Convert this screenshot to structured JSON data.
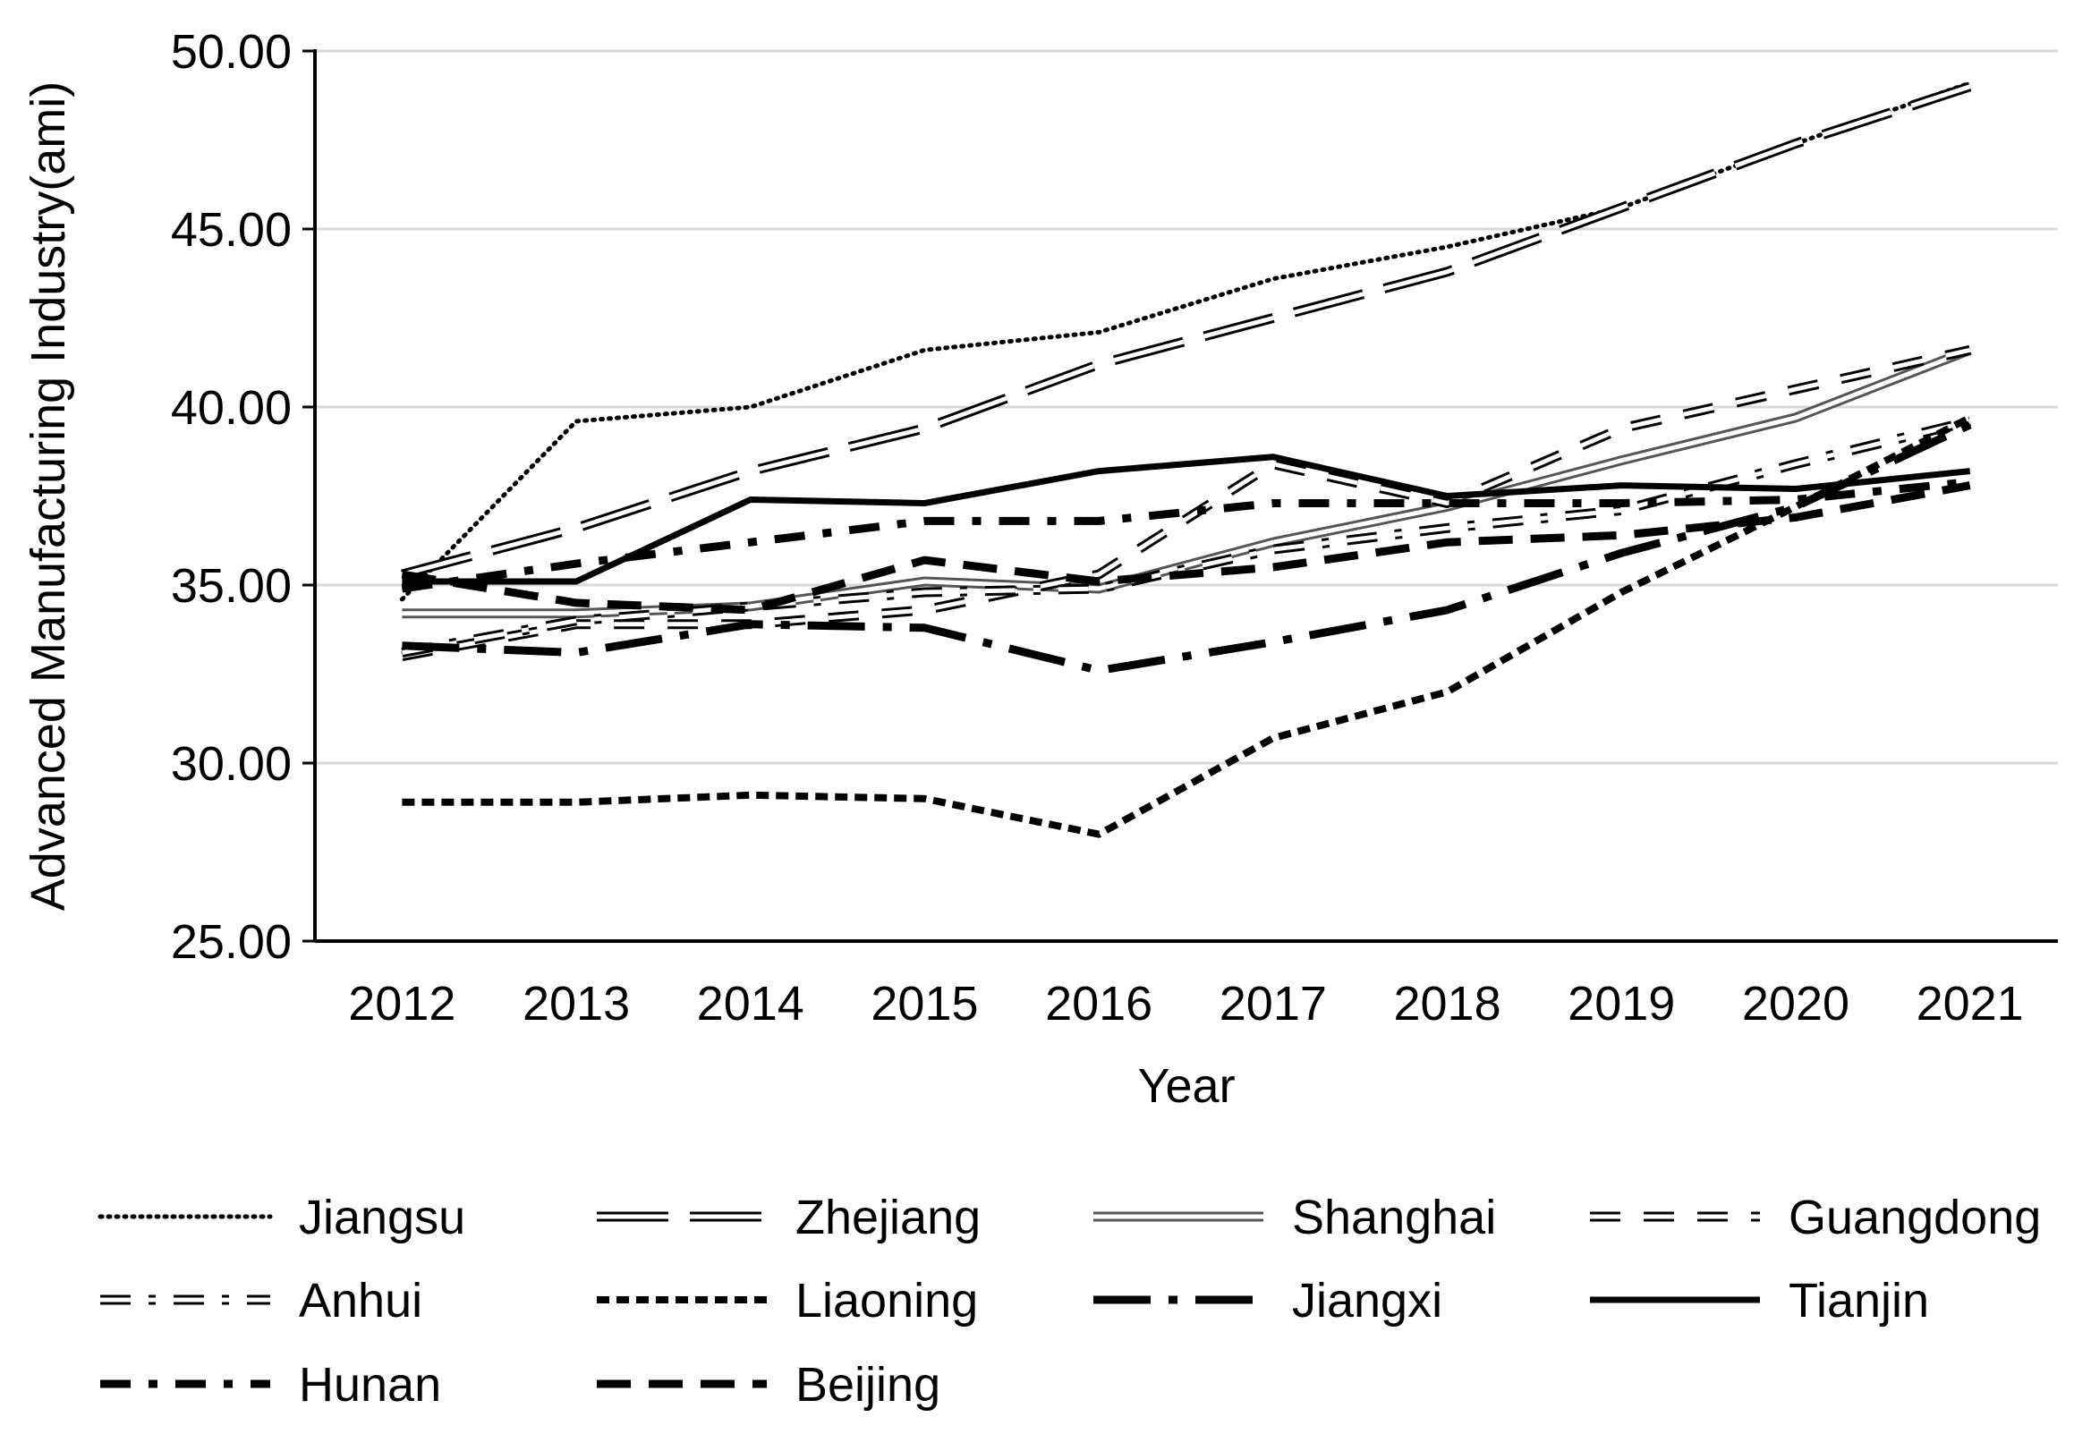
{
  "chart_data": {
    "type": "line",
    "title": "",
    "xlabel": "Year",
    "ylabel": "Advanced Manufacturing Industry(ami)",
    "ylim": [
      25,
      50
    ],
    "yticks": [
      "25.00",
      "30.00",
      "35.00",
      "40.00",
      "45.00",
      "50.00"
    ],
    "categories": [
      "2012",
      "2013",
      "2014",
      "2015",
      "2016",
      "2017",
      "2018",
      "2019",
      "2020",
      "2021"
    ],
    "grid": true,
    "legend_position": "bottom",
    "series": [
      {
        "name": "Jiangsu",
        "style": "dotted",
        "color": "#000000",
        "values": [
          34.6,
          39.6,
          40.0,
          41.6,
          42.1,
          43.6,
          44.5,
          45.6,
          47.4,
          49.1
        ]
      },
      {
        "name": "Zhejiang",
        "style": "double-long-dash",
        "color": "#000000",
        "values": [
          35.3,
          36.6,
          38.2,
          39.4,
          41.2,
          42.5,
          43.8,
          45.6,
          47.4,
          49.0
        ]
      },
      {
        "name": "Shanghai",
        "style": "double-solid",
        "color": "#555555",
        "values": [
          34.2,
          34.2,
          34.4,
          35.1,
          34.9,
          36.2,
          37.2,
          38.5,
          39.7,
          41.6
        ]
      },
      {
        "name": "Guangdong",
        "style": "double-dash",
        "color": "#000000",
        "values": [
          33.0,
          33.9,
          33.9,
          34.3,
          35.3,
          38.4,
          37.3,
          39.4,
          40.5,
          41.6
        ]
      },
      {
        "name": "Anhui",
        "style": "double-dash-dot",
        "color": "#000000",
        "values": [
          33.1,
          34.0,
          34.4,
          34.8,
          34.9,
          36.0,
          36.6,
          37.1,
          38.4,
          39.6
        ]
      },
      {
        "name": "Liaoning",
        "style": "short-dash",
        "color": "#000000",
        "values": [
          28.9,
          28.9,
          29.1,
          29.0,
          28.0,
          30.7,
          32.0,
          34.8,
          37.2,
          39.7
        ]
      },
      {
        "name": "Jiangxi",
        "style": "long-dash-dot",
        "color": "#000000",
        "values": [
          33.3,
          33.1,
          33.9,
          33.8,
          32.6,
          33.4,
          34.3,
          35.9,
          37.2,
          39.5
        ]
      },
      {
        "name": "Tianjin",
        "style": "solid",
        "color": "#000000",
        "values": [
          35.1,
          35.1,
          37.4,
          37.3,
          38.2,
          38.6,
          37.5,
          37.8,
          37.7,
          38.2
        ]
      },
      {
        "name": "Hunan",
        "style": "dash-dot",
        "color": "#000000",
        "values": [
          34.9,
          35.6,
          36.2,
          36.8,
          36.8,
          37.3,
          37.3,
          37.3,
          37.4,
          37.9
        ]
      },
      {
        "name": "Beijing",
        "style": "dash",
        "color": "#000000",
        "values": [
          35.3,
          34.5,
          34.3,
          35.7,
          35.1,
          35.5,
          36.2,
          36.4,
          36.9,
          37.8
        ]
      }
    ]
  }
}
